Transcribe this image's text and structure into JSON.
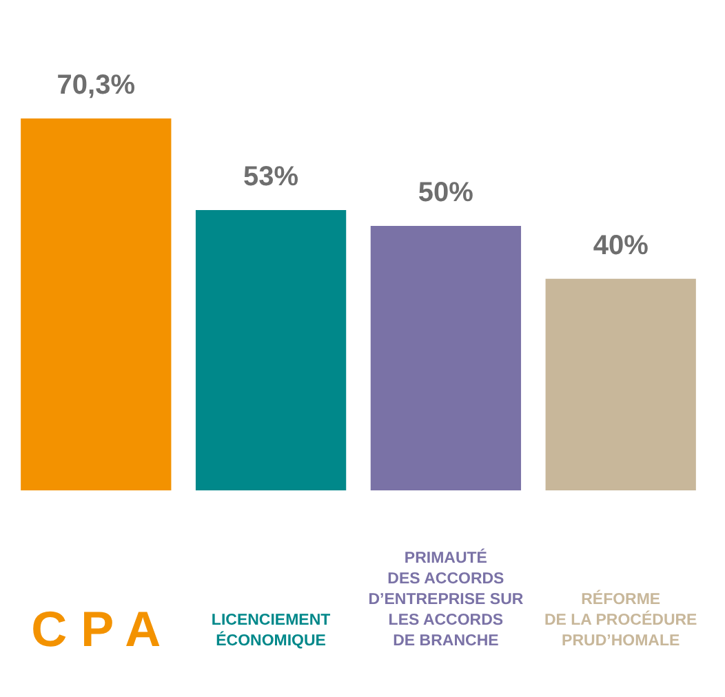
{
  "chart_data": {
    "type": "bar",
    "categories": [
      "C P A",
      "LICENCIEMENT\nÉCONOMIQUE",
      "PRIMAUTÉ\nDES ACCORDS\nD’ENTREPRISE SUR\nLES ACCORDS\nDE BRANCHE",
      "RÉFORME\nDE LA PROCÉDURE\nPRUD’HOMALE"
    ],
    "values": [
      70.3,
      53,
      50,
      40
    ],
    "colors": [
      "#f39200",
      "#00888a",
      "#7a72a6",
      "#c8b79a"
    ],
    "value_labels": [
      "70,3%",
      "53%",
      "50%",
      "40%"
    ],
    "tick_labels": "x"
  }
}
